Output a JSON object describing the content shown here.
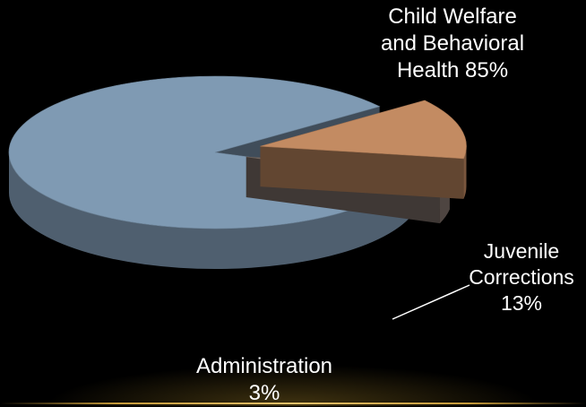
{
  "chart_data": {
    "type": "pie",
    "style": "3d-exploded",
    "slices": [
      {
        "name": "Child Welfare and Behavioral Health",
        "value": 85,
        "color": "#7f9ab3",
        "label_lines": [
          "Child Welfare",
          "and Behavioral",
          "Health 85%"
        ]
      },
      {
        "name": "Juvenile Corrections",
        "value": 13,
        "color": "#c38b62",
        "label_lines": [
          "Juvenile",
          "Corrections",
          "13%"
        ]
      },
      {
        "name": "Administration",
        "value": 3,
        "color": "#7d7069",
        "label_lines": [
          "Administration",
          "3%"
        ]
      }
    ]
  },
  "labels": {
    "child_welfare": [
      "Child Welfare",
      "and Behavioral",
      "Health 85%"
    ],
    "juvenile_corrections": [
      "Juvenile",
      "Corrections",
      "13%"
    ],
    "administration": [
      "Administration",
      "3%"
    ]
  },
  "colors": {
    "background": "#000000",
    "text": "#ffffff",
    "accent_rule": "#d4b05a"
  }
}
